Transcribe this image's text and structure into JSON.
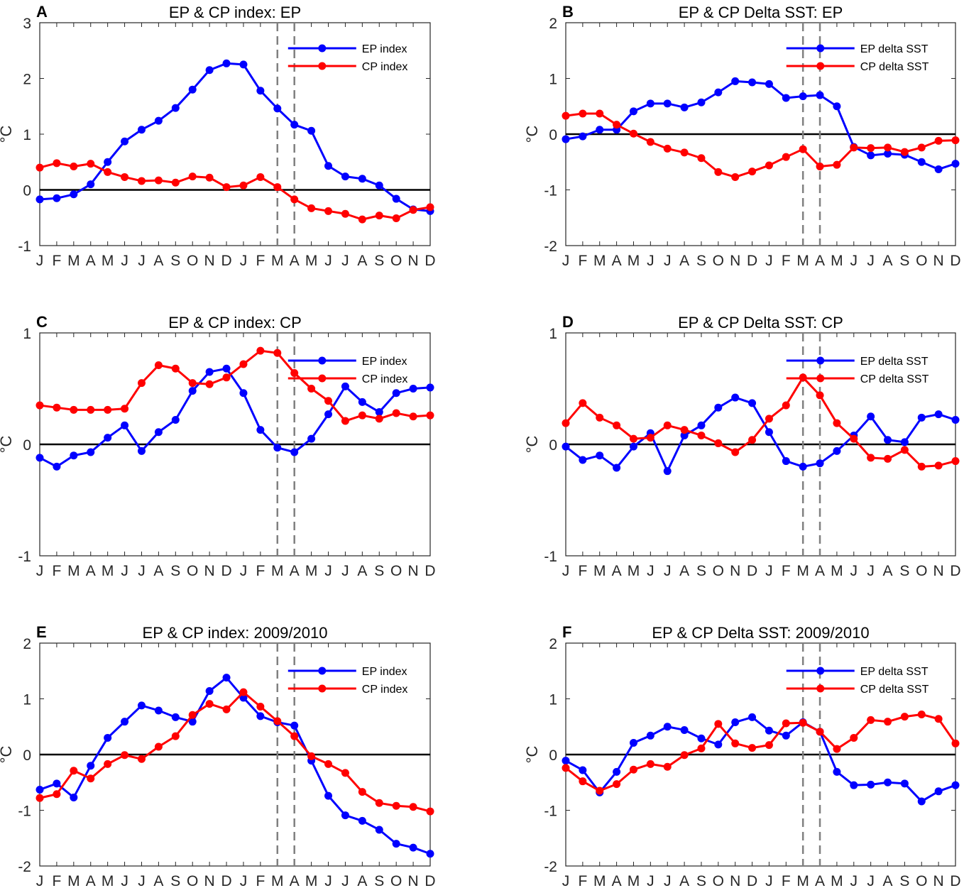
{
  "chart_data": [
    {
      "type": "line",
      "panel": "A",
      "title": "EP & CP index: EP",
      "xlabel": "",
      "ylabel": "°C",
      "ylim": [
        -1,
        3
      ],
      "yticks": [
        "-1",
        "0",
        "1",
        "2",
        "3"
      ],
      "categories": [
        "J",
        "F",
        "M",
        "A",
        "M",
        "J",
        "J",
        "A",
        "S",
        "O",
        "N",
        "D",
        "J",
        "F",
        "M",
        "A",
        "M",
        "J",
        "J",
        "A",
        "S",
        "O",
        "N",
        "D"
      ],
      "reference_lines": {
        "horizontal_zero": true,
        "dashed_vertical_at": [
          "M",
          "A"
        ]
      },
      "legend_position": "top-right",
      "series": [
        {
          "name": "EP index",
          "color": "#0000ff",
          "values": [
            -0.17,
            -0.15,
            -0.08,
            0.1,
            0.5,
            0.87,
            1.08,
            1.24,
            1.47,
            1.8,
            2.15,
            2.27,
            2.25,
            1.78,
            1.46,
            1.17,
            1.06,
            0.43,
            0.24,
            0.2,
            0.08,
            -0.16,
            -0.35,
            -0.38
          ]
        },
        {
          "name": "CP index",
          "color": "#ff0000",
          "values": [
            0.4,
            0.48,
            0.42,
            0.47,
            0.32,
            0.23,
            0.16,
            0.17,
            0.13,
            0.24,
            0.22,
            0.05,
            0.08,
            0.23,
            0.05,
            -0.17,
            -0.33,
            -0.38,
            -0.43,
            -0.53,
            -0.46,
            -0.51,
            -0.36,
            -0.31
          ]
        }
      ]
    },
    {
      "type": "line",
      "panel": "B",
      "title": "EP & CP Delta SST: EP",
      "xlabel": "",
      "ylabel": "°C",
      "ylim": [
        -2,
        2
      ],
      "yticks": [
        "-2",
        "-1",
        "0",
        "1",
        "2"
      ],
      "categories": [
        "J",
        "F",
        "M",
        "A",
        "M",
        "J",
        "J",
        "A",
        "S",
        "O",
        "N",
        "D",
        "J",
        "F",
        "M",
        "A",
        "M",
        "J",
        "J",
        "A",
        "S",
        "O",
        "N",
        "D"
      ],
      "reference_lines": {
        "horizontal_zero": true,
        "dashed_vertical_at": [
          "M",
          "A"
        ]
      },
      "legend_position": "top-right",
      "series": [
        {
          "name": "EP delta SST",
          "color": "#0000ff",
          "values": [
            -0.09,
            -0.04,
            0.08,
            0.08,
            0.41,
            0.55,
            0.55,
            0.48,
            0.57,
            0.75,
            0.95,
            0.93,
            0.9,
            0.65,
            0.68,
            0.7,
            0.5,
            -0.23,
            -0.38,
            -0.35,
            -0.37,
            -0.5,
            -0.63,
            -0.53
          ]
        },
        {
          "name": "CP delta SST",
          "color": "#ff0000",
          "values": [
            0.33,
            0.37,
            0.37,
            0.17,
            0.01,
            -0.14,
            -0.26,
            -0.33,
            -0.43,
            -0.68,
            -0.77,
            -0.67,
            -0.56,
            -0.41,
            -0.27,
            -0.58,
            -0.55,
            -0.24,
            -0.25,
            -0.24,
            -0.32,
            -0.24,
            -0.12,
            -0.11
          ]
        }
      ]
    },
    {
      "type": "line",
      "panel": "C",
      "title": "EP & CP index: CP",
      "xlabel": "",
      "ylabel": "°C",
      "ylim": [
        -1,
        1
      ],
      "yticks": [
        "-1",
        "0",
        "1"
      ],
      "categories": [
        "J",
        "F",
        "M",
        "A",
        "M",
        "J",
        "J",
        "A",
        "S",
        "O",
        "N",
        "D",
        "J",
        "F",
        "M",
        "A",
        "M",
        "J",
        "J",
        "A",
        "S",
        "O",
        "N",
        "D"
      ],
      "reference_lines": {
        "horizontal_zero": true,
        "dashed_vertical_at": [
          "M",
          "A"
        ]
      },
      "legend_position": "top-right",
      "series": [
        {
          "name": "EP index",
          "color": "#0000ff",
          "values": [
            -0.12,
            -0.2,
            -0.1,
            -0.07,
            0.06,
            0.17,
            -0.06,
            0.11,
            0.22,
            0.48,
            0.65,
            0.68,
            0.46,
            0.13,
            -0.03,
            -0.07,
            0.05,
            0.27,
            0.52,
            0.38,
            0.29,
            0.46,
            0.5,
            0.51
          ]
        },
        {
          "name": "CP index",
          "color": "#ff0000",
          "values": [
            0.35,
            0.33,
            0.31,
            0.31,
            0.31,
            0.32,
            0.55,
            0.71,
            0.68,
            0.55,
            0.54,
            0.6,
            0.72,
            0.84,
            0.82,
            0.64,
            0.5,
            0.39,
            0.21,
            0.26,
            0.23,
            0.28,
            0.25,
            0.26
          ]
        }
      ]
    },
    {
      "type": "line",
      "panel": "D",
      "title": "EP & CP Delta SST: CP",
      "xlabel": "",
      "ylabel": "°C",
      "ylim": [
        -1,
        1
      ],
      "yticks": [
        "-1",
        "0",
        "1"
      ],
      "categories": [
        "J",
        "F",
        "M",
        "A",
        "M",
        "J",
        "J",
        "A",
        "S",
        "O",
        "N",
        "D",
        "J",
        "F",
        "M",
        "A",
        "M",
        "J",
        "J",
        "A",
        "S",
        "O",
        "N",
        "D"
      ],
      "reference_lines": {
        "horizontal_zero": true,
        "dashed_vertical_at": [
          "M",
          "A"
        ]
      },
      "legend_position": "top-right",
      "series": [
        {
          "name": "EP delta SST",
          "color": "#0000ff",
          "values": [
            -0.02,
            -0.14,
            -0.1,
            -0.21,
            -0.02,
            0.1,
            -0.24,
            0.08,
            0.17,
            0.33,
            0.42,
            0.37,
            0.11,
            -0.15,
            -0.2,
            -0.17,
            -0.06,
            0.08,
            0.25,
            0.04,
            0.02,
            0.24,
            0.27,
            0.22
          ]
        },
        {
          "name": "CP delta SST",
          "color": "#ff0000",
          "values": [
            0.19,
            0.37,
            0.24,
            0.17,
            0.05,
            0.06,
            0.17,
            0.13,
            0.08,
            0.01,
            -0.07,
            0.04,
            0.23,
            0.35,
            0.6,
            0.44,
            0.19,
            0.05,
            -0.12,
            -0.13,
            -0.05,
            -0.2,
            -0.19,
            -0.15
          ]
        }
      ]
    },
    {
      "type": "line",
      "panel": "E",
      "title": "EP & CP index: 2009/2010",
      "xlabel": "",
      "ylabel": "°C",
      "ylim": [
        -2,
        2
      ],
      "yticks": [
        "-2",
        "-1",
        "0",
        "1",
        "2"
      ],
      "categories": [
        "J",
        "F",
        "M",
        "A",
        "M",
        "J",
        "J",
        "A",
        "S",
        "O",
        "N",
        "D",
        "J",
        "F",
        "M",
        "A",
        "M",
        "J",
        "J",
        "A",
        "S",
        "O",
        "N",
        "D"
      ],
      "reference_lines": {
        "horizontal_zero": true,
        "dashed_vertical_at": [
          "M",
          "A"
        ]
      },
      "legend_position": "top-right",
      "series": [
        {
          "name": "EP index",
          "color": "#0000ff",
          "values": [
            -0.63,
            -0.52,
            -0.77,
            -0.2,
            0.3,
            0.59,
            0.88,
            0.79,
            0.67,
            0.59,
            1.14,
            1.38,
            1.02,
            0.69,
            0.58,
            0.52,
            -0.11,
            -0.74,
            -1.09,
            -1.19,
            -1.35,
            -1.6,
            -1.67,
            -1.78
          ]
        },
        {
          "name": "CP index",
          "color": "#ff0000",
          "values": [
            -0.78,
            -0.71,
            -0.29,
            -0.43,
            -0.17,
            -0.01,
            -0.08,
            0.14,
            0.33,
            0.71,
            0.91,
            0.81,
            1.12,
            0.86,
            0.6,
            0.33,
            -0.03,
            -0.17,
            -0.33,
            -0.67,
            -0.87,
            -0.92,
            -0.94,
            -1.02
          ]
        }
      ]
    },
    {
      "type": "line",
      "panel": "F",
      "title": "EP & CP Delta SST: 2009/2010",
      "xlabel": "",
      "ylabel": "°C",
      "ylim": [
        -2,
        2
      ],
      "yticks": [
        "-2",
        "-1",
        "0",
        "1",
        "2"
      ],
      "categories": [
        "J",
        "F",
        "M",
        "A",
        "M",
        "J",
        "J",
        "A",
        "S",
        "O",
        "N",
        "D",
        "J",
        "F",
        "M",
        "A",
        "M",
        "J",
        "J",
        "A",
        "S",
        "O",
        "N",
        "D"
      ],
      "reference_lines": {
        "horizontal_zero": true,
        "dashed_vertical_at": [
          "M",
          "A"
        ]
      },
      "legend_position": "top-right",
      "series": [
        {
          "name": "EP delta SST",
          "color": "#0000ff",
          "values": [
            -0.11,
            -0.28,
            -0.68,
            -0.31,
            0.21,
            0.34,
            0.5,
            0.44,
            0.29,
            0.18,
            0.58,
            0.67,
            0.43,
            0.34,
            0.58,
            0.41,
            -0.31,
            -0.55,
            -0.54,
            -0.5,
            -0.52,
            -0.84,
            -0.66,
            -0.55
          ]
        },
        {
          "name": "CP delta SST",
          "color": "#ff0000",
          "values": [
            -0.24,
            -0.48,
            -0.65,
            -0.53,
            -0.27,
            -0.17,
            -0.22,
            -0.01,
            0.11,
            0.55,
            0.2,
            0.12,
            0.17,
            0.56,
            0.57,
            0.41,
            0.1,
            0.3,
            0.62,
            0.59,
            0.68,
            0.72,
            0.64,
            0.2
          ]
        }
      ]
    }
  ]
}
